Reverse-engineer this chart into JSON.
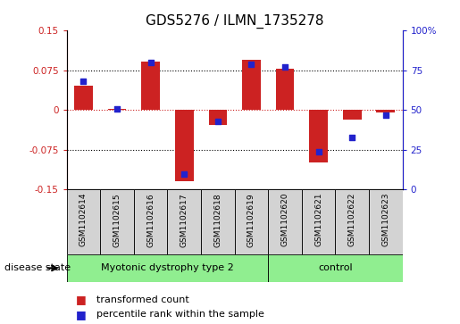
{
  "title": "GDS5276 / ILMN_1735278",
  "samples": [
    "GSM1102614",
    "GSM1102615",
    "GSM1102616",
    "GSM1102617",
    "GSM1102618",
    "GSM1102619",
    "GSM1102620",
    "GSM1102621",
    "GSM1102622",
    "GSM1102623"
  ],
  "transformed_count": [
    0.047,
    0.003,
    0.092,
    -0.135,
    -0.028,
    0.095,
    0.078,
    -0.098,
    -0.018,
    -0.005
  ],
  "percentile_rank": [
    68,
    51,
    80,
    10,
    43,
    79,
    77,
    24,
    33,
    47
  ],
  "group1_count": 6,
  "group2_count": 4,
  "group1_label": "Myotonic dystrophy type 2",
  "group2_label": "control",
  "group_color": "#90EE90",
  "left_ylim": [
    -0.15,
    0.15
  ],
  "right_ylim": [
    0,
    100
  ],
  "left_yticks": [
    -0.15,
    -0.075,
    0,
    0.075,
    0.15
  ],
  "right_yticks": [
    0,
    25,
    50,
    75,
    100
  ],
  "left_yticklabels": [
    "-0.15",
    "-0.075",
    "0",
    "0.075",
    "0.15"
  ],
  "right_yticklabels": [
    "0",
    "25",
    "50",
    "75",
    "100%"
  ],
  "bar_color": "#CC2222",
  "dot_color": "#2222CC",
  "bar_width": 0.55,
  "sample_box_color": "#D3D3D3",
  "legend_items": [
    "transformed count",
    "percentile rank within the sample"
  ],
  "disease_state_label": "disease state",
  "zero_line_color": "#CC2222",
  "dotted_line_color": "#000000",
  "title_fontsize": 11
}
